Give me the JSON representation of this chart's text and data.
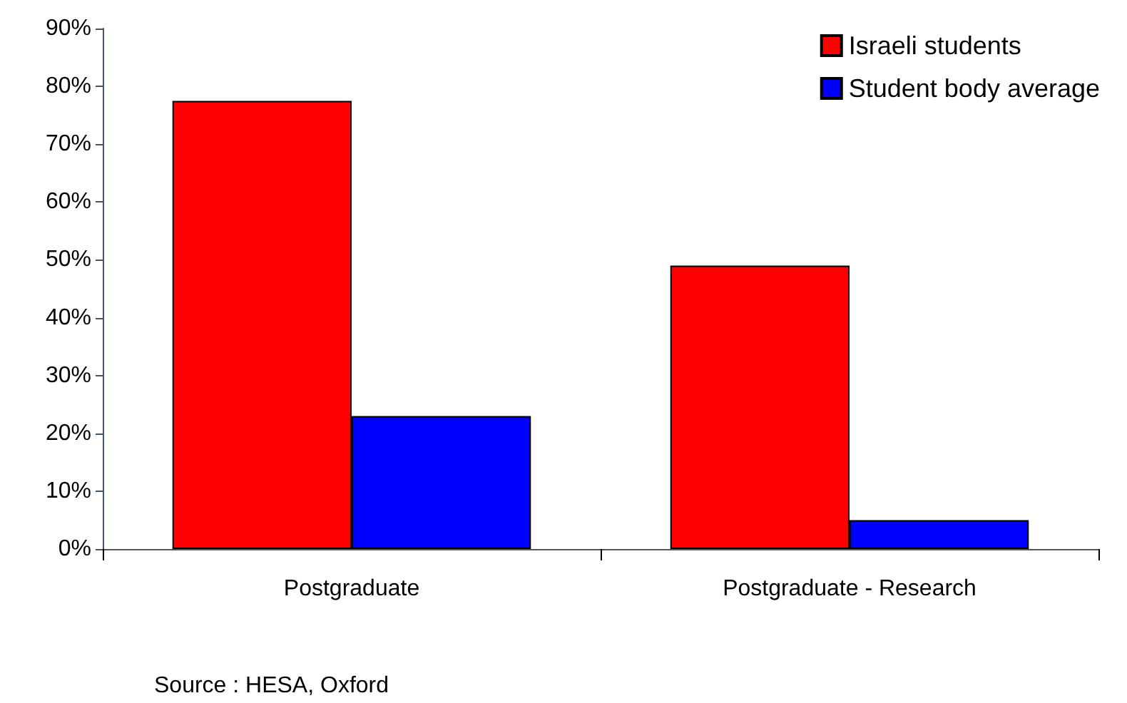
{
  "chart_data": {
    "type": "bar",
    "categories": [
      "Postgraduate",
      "Postgraduate - Research"
    ],
    "series": [
      {
        "name": "Israeli students",
        "color": "#ff0000",
        "values": [
          77.5,
          49
        ]
      },
      {
        "name": "Student body average",
        "color": "#0000ff",
        "values": [
          23,
          5
        ]
      }
    ],
    "ylim": [
      0,
      90
    ],
    "yticks": [
      {
        "value": 0,
        "label": "0%"
      },
      {
        "value": 10,
        "label": "10%"
      },
      {
        "value": 20,
        "label": "20%"
      },
      {
        "value": 30,
        "label": "30%"
      },
      {
        "value": 40,
        "label": "40%"
      },
      {
        "value": 50,
        "label": "50%"
      },
      {
        "value": 60,
        "label": "60%"
      },
      {
        "value": 70,
        "label": "70%"
      },
      {
        "value": 80,
        "label": "80%"
      },
      {
        "value": 90,
        "label": "90%"
      }
    ],
    "grid": false,
    "legend": "top right",
    "annotations": [
      "Source : HESA, Oxford"
    ]
  }
}
